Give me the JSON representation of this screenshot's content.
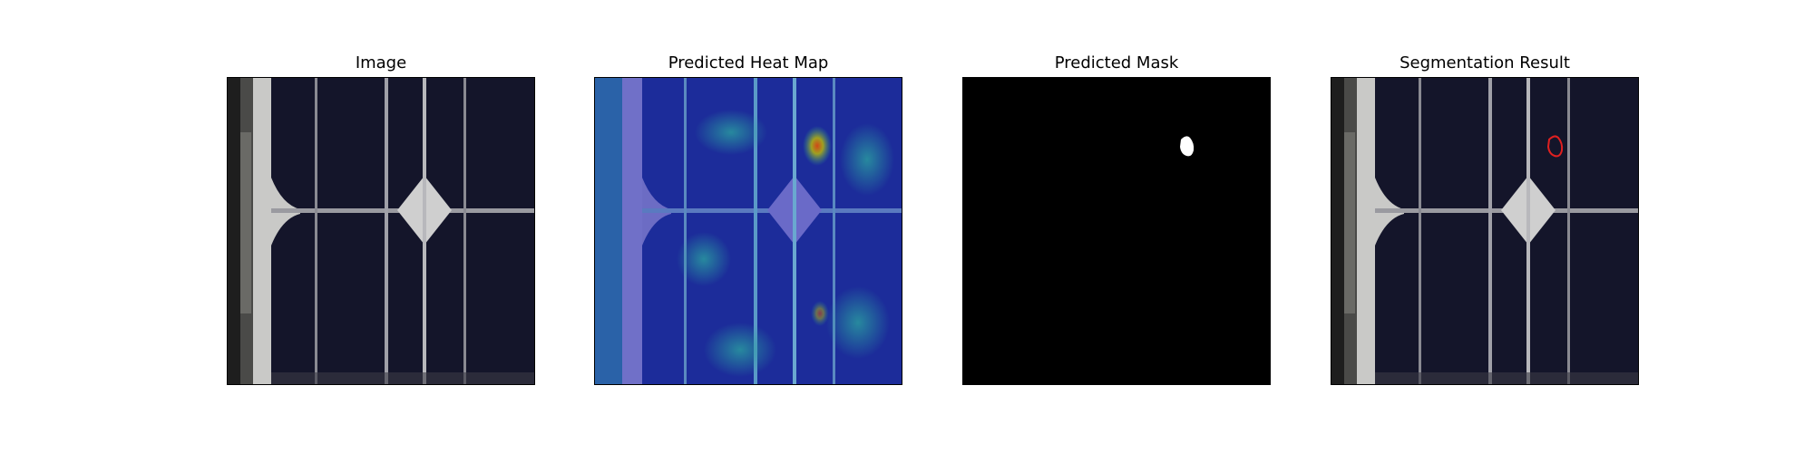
{
  "figure": {
    "panels": [
      {
        "id": "image",
        "title": "Image"
      },
      {
        "id": "heatmap",
        "title": "Predicted Heat Map"
      },
      {
        "id": "mask",
        "title": "Predicted Mask"
      },
      {
        "id": "segmentation",
        "title": "Segmentation Result"
      }
    ]
  },
  "colors": {
    "background": "#ffffff",
    "cell": "#15162a",
    "busbar": "#c8c8c8",
    "frame": "#2a2a2a",
    "mask_bg": "#000000",
    "mask_fg": "#ffffff",
    "contour": "#e02020",
    "heat_low": "#1a2fa0",
    "heat_mid": "#2f7fc0",
    "heat_hot": "#d04020"
  }
}
